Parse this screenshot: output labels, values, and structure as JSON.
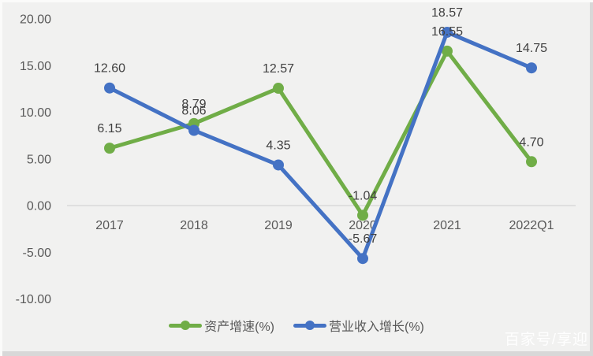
{
  "chart_data": {
    "type": "line",
    "title": "",
    "categories": [
      "2017",
      "2018",
      "2019",
      "2020",
      "2021",
      "2022Q1"
    ],
    "series": [
      {
        "name": "资产增速(%)",
        "color": "#70AD47",
        "values": [
          6.15,
          8.79,
          12.57,
          -1.04,
          16.55,
          4.7
        ],
        "labels": [
          "6.15",
          "8.79",
          "12.57",
          "-1.04",
          "16.55",
          "4.70"
        ]
      },
      {
        "name": "营业收入增长(%)",
        "color": "#4472C4",
        "values": [
          12.6,
          8.06,
          4.35,
          -5.67,
          18.57,
          14.75
        ],
        "labels": [
          "12.60",
          "8.06",
          "4.35",
          "-5.67",
          "18.57",
          "14.75"
        ]
      }
    ],
    "y_axis": {
      "tick_labels": [
        "20.00",
        "15.00",
        "10.00",
        "5.00",
        "0.00",
        "-5.00",
        "-10.00"
      ],
      "tick_values": [
        20,
        15,
        10,
        5,
        0,
        -5,
        -10
      ],
      "range": [
        -10,
        20
      ]
    },
    "grid": "zero-line-only",
    "legend_position": "bottom"
  },
  "watermark": {
    "text": "百家号/享迎"
  },
  "colors": {
    "series_green": "#70AD47",
    "series_blue": "#4472C4",
    "background": "#F1F1F0",
    "zero_line": "#D9D9D9",
    "axis_text": "#595959",
    "data_label_text": "#404040",
    "watermark_text": "#FFFFFF"
  }
}
